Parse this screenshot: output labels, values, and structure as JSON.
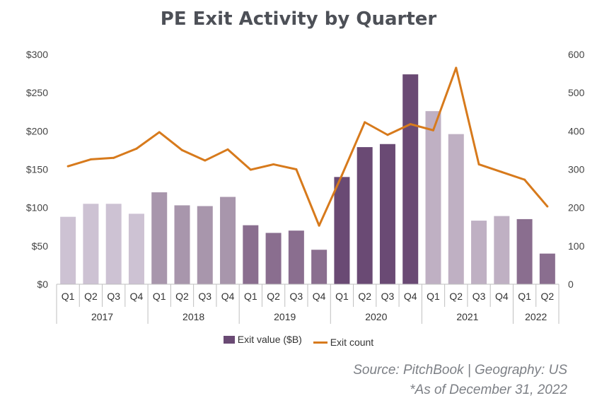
{
  "chart_data": {
    "type": "bar",
    "title": "PE Exit Activity by Quarter",
    "quarters": [
      "Q1",
      "Q2",
      "Q3",
      "Q4",
      "Q1",
      "Q2",
      "Q3",
      "Q4",
      "Q1",
      "Q2",
      "Q3",
      "Q4",
      "Q1",
      "Q2",
      "Q3",
      "Q4",
      "Q1",
      "Q2",
      "Q3",
      "Q4",
      "Q1",
      "Q2"
    ],
    "years": [
      {
        "label": "2017",
        "count": 4
      },
      {
        "label": "2018",
        "count": 4
      },
      {
        "label": "2019",
        "count": 4
      },
      {
        "label": "2020",
        "count": 4
      },
      {
        "label": "2021",
        "count": 4
      },
      {
        "label": "2022",
        "count": 2
      }
    ],
    "series": [
      {
        "name": "Exit value ($B)",
        "type": "bar",
        "axis": "left",
        "values": [
          88,
          105,
          105,
          92,
          120,
          103,
          102,
          114,
          77,
          67,
          70,
          45,
          140,
          179,
          183,
          274,
          226,
          196,
          83,
          89,
          85,
          40
        ]
      },
      {
        "name": "Exit count",
        "type": "line",
        "axis": "right",
        "values": [
          308,
          326,
          330,
          354,
          397,
          350,
          323,
          352,
          299,
          313,
          300,
          153,
          285,
          423,
          390,
          418,
          402,
          565,
          313,
          293,
          273,
          203
        ]
      }
    ],
    "y_left": {
      "min": 0,
      "max": 300,
      "ticks": [
        "$0",
        "$50",
        "$100",
        "$150",
        "$200",
        "$250",
        "$300"
      ]
    },
    "y_right": {
      "min": 0,
      "max": 600,
      "ticks": [
        "0",
        "100",
        "200",
        "300",
        "400",
        "500",
        "600"
      ]
    },
    "bar_colors": [
      "#cdc2d3",
      "#cdc2d3",
      "#cdc2d3",
      "#cdc2d3",
      "#a896ac",
      "#a896ac",
      "#a896ac",
      "#a896ac",
      "#8a6e8f",
      "#8a6e8f",
      "#8a6e8f",
      "#8a6e8f",
      "#6a4a74",
      "#6a4a74",
      "#6a4a74",
      "#6a4a74",
      "#bfb0c3",
      "#bfb0c3",
      "#bfb0c3",
      "#bfb0c3",
      "#8a6e8f",
      "#8a6e8f"
    ],
    "line_color": "#d77a1c",
    "legend_bar_color": "#6a4a74",
    "legend_position": "bottom"
  },
  "source": "Source: PitchBook | Geography: US",
  "footnote": "*As of December 31, 2022"
}
